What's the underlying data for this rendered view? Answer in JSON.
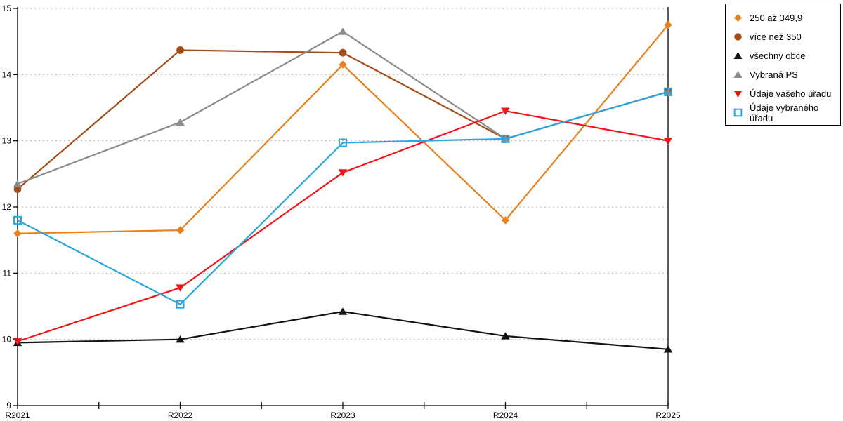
{
  "chart_data": {
    "type": "line",
    "title": "",
    "xlabel": "",
    "ylabel": "",
    "categories": [
      "R2021",
      "R2022",
      "R2023",
      "R2024",
      "R2025"
    ],
    "series": [
      {
        "name": "250 až 349,9",
        "color": "#E8811C",
        "marker": "diamond",
        "values": [
          11.6,
          11.65,
          14.15,
          11.8,
          14.75
        ]
      },
      {
        "name": "více než 350",
        "color": "#A34E1A",
        "marker": "circle",
        "values": [
          12.27,
          14.37,
          14.33,
          13.03,
          13.74
        ]
      },
      {
        "name": "všechny obce",
        "color": "#141414",
        "marker": "triangle-up",
        "values": [
          9.95,
          10.0,
          10.42,
          10.05,
          9.85
        ]
      },
      {
        "name": "Vybraná PS",
        "color": "#8C8C8C",
        "marker": "triangle-up",
        "values": [
          12.35,
          13.28,
          14.65,
          13.03,
          13.74
        ]
      },
      {
        "name": "Údaje vašeho úřadu",
        "color": "#F21418",
        "marker": "triangle-down",
        "values": [
          9.97,
          10.78,
          12.52,
          13.45,
          13.0
        ]
      },
      {
        "name": "Údaje vybraného úřadu",
        "color": "#2BA7DF",
        "marker": "square-open",
        "values": [
          11.8,
          10.53,
          12.97,
          13.03,
          13.74
        ]
      }
    ],
    "ylim": [
      9,
      15
    ],
    "yticks": [
      9,
      10,
      11,
      12,
      13,
      14,
      15
    ],
    "grid": "horizontal-dotted",
    "gridline_color": "#b4b4b4",
    "axis_color": "#000000",
    "legend_position": "top-right-outside"
  }
}
